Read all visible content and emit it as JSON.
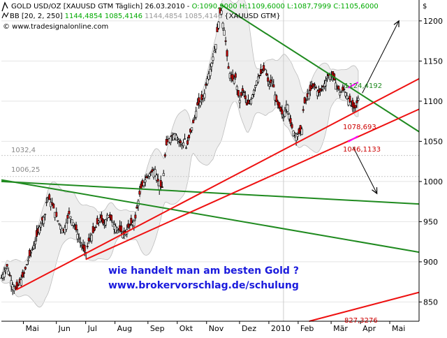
{
  "header": {
    "line1_prefix": "GOLD USD/OZ [XAUUSD GTM  Täglich] 26.03.2010 - ",
    "line1_ohlc": "O:1090,9000 H:1109,6000 L:1087,7999 C:1105,6000",
    "line2_prefix": "BB [20, 2, 250]",
    "line2_values": "1144,4854 1085,4146",
    "line2_grey": "1144,4854 1085,4146",
    "line2_symbol": "{XAUUSD GTM}",
    "line3": "© www.tradesignalonline.com",
    "currency": "$"
  },
  "colors": {
    "up_candle": "#ffffff",
    "down_candle": "#cc0000",
    "bb_band": "#e6e6e6",
    "green_line": "#1f8a1f",
    "red_line": "#ee1111",
    "pink": "#ff00ff",
    "ohlc_green": "#00aa00",
    "ohlc_red": "#cc0000",
    "text_blue": "#1b1bdd"
  },
  "annotations": {
    "label_1124": "1124,4192",
    "label_1078": "1078,693",
    "label_1046": "1046,1133",
    "label_1032": "1032,4",
    "label_1006": "1006,25",
    "label_827": "827,3276",
    "promo_line1": "wie handelt man am besten Gold ?",
    "promo_line2": "www.brokervorschlag.de/schulung"
  },
  "chart_data": {
    "type": "candlestick",
    "title": "GOLD USD/OZ [XAUUSD GTM Täglich] 26.03.2010",
    "ylim": [
      826,
      1226
    ],
    "yticks": [
      850,
      900,
      950,
      1000,
      1050,
      1100,
      1150,
      1200
    ],
    "xlabels": [
      "Mai",
      "Jun",
      "Jul",
      "Aug",
      "Sep",
      "Okt",
      "Nov",
      "Dez",
      "2010",
      "Feb",
      "Mär",
      "Apr",
      "Mai"
    ],
    "x_positions": [
      2009.29,
      2009.38,
      2009.46,
      2009.54,
      2009.63,
      2009.71,
      2009.79,
      2009.88,
      2009.96,
      2010.04,
      2010.13,
      2010.21,
      2010.29
    ],
    "xlim": [
      2009.23,
      2010.37
    ],
    "close_path": [
      [
        2009.23,
        880
      ],
      [
        2009.245,
        895
      ],
      [
        2009.26,
        872
      ],
      [
        2009.27,
        865
      ],
      [
        2009.29,
        883
      ],
      [
        2009.305,
        905
      ],
      [
        2009.32,
        922
      ],
      [
        2009.335,
        945
      ],
      [
        2009.35,
        960
      ],
      [
        2009.355,
        982
      ],
      [
        2009.37,
        970
      ],
      [
        2009.385,
        950
      ],
      [
        2009.4,
        938
      ],
      [
        2009.415,
        960
      ],
      [
        2009.43,
        945
      ],
      [
        2009.445,
        925
      ],
      [
        2009.46,
        910
      ],
      [
        2009.47,
        928
      ],
      [
        2009.485,
        940
      ],
      [
        2009.5,
        955
      ],
      [
        2009.51,
        945
      ],
      [
        2009.52,
        960
      ],
      [
        2009.535,
        948
      ],
      [
        2009.55,
        940
      ],
      [
        2009.565,
        935
      ],
      [
        2009.58,
        945
      ],
      [
        2009.595,
        952
      ],
      [
        2009.6,
        968
      ],
      [
        2009.61,
        990
      ],
      [
        2009.62,
        1000
      ],
      [
        2009.635,
        1010
      ],
      [
        2009.65,
        1015
      ],
      [
        2009.66,
        995
      ],
      [
        2009.67,
        992
      ],
      [
        2009.675,
        1025
      ],
      [
        2009.68,
        1045
      ],
      [
        2009.69,
        1055
      ],
      [
        2009.705,
        1060
      ],
      [
        2009.715,
        1050
      ],
      [
        2009.725,
        1045
      ],
      [
        2009.73,
        1055
      ],
      [
        2009.735,
        1040
      ],
      [
        2009.745,
        1060
      ],
      [
        2009.755,
        1075
      ],
      [
        2009.765,
        1095
      ],
      [
        2009.775,
        1100
      ],
      [
        2009.785,
        1110
      ],
      [
        2009.79,
        1125
      ],
      [
        2009.8,
        1140
      ],
      [
        2009.81,
        1160
      ],
      [
        2009.815,
        1170
      ],
      [
        2009.82,
        1190
      ],
      [
        2009.825,
        1205
      ],
      [
        2009.83,
        1215
      ],
      [
        2009.835,
        1195
      ],
      [
        2009.84,
        1185
      ],
      [
        2009.845,
        1160
      ],
      [
        2009.85,
        1140
      ],
      [
        2009.86,
        1125
      ],
      [
        2009.87,
        1130
      ],
      [
        2009.875,
        1110
      ],
      [
        2009.88,
        1100
      ],
      [
        2009.89,
        1115
      ],
      [
        2009.9,
        1095
      ],
      [
        2009.91,
        1100
      ],
      [
        2009.92,
        1115
      ],
      [
        2009.93,
        1130
      ],
      [
        2009.94,
        1135
      ],
      [
        2009.95,
        1140
      ],
      [
        2009.96,
        1120
      ],
      [
        2009.97,
        1125
      ],
      [
        2009.98,
        1100
      ],
      [
        2009.99,
        1090
      ],
      [
        2010.0,
        1080
      ],
      [
        2010.01,
        1100
      ],
      [
        2010.02,
        1070
      ],
      [
        2010.03,
        1060
      ],
      [
        2010.04,
        1058
      ],
      [
        2010.05,
        1065
      ],
      [
        2010.055,
        1095
      ],
      [
        2010.065,
        1105
      ],
      [
        2010.075,
        1115
      ],
      [
        2010.085,
        1120
      ],
      [
        2010.095,
        1110
      ],
      [
        2010.105,
        1115
      ],
      [
        2010.115,
        1125
      ],
      [
        2010.125,
        1133
      ],
      [
        2010.135,
        1130
      ],
      [
        2010.145,
        1120
      ],
      [
        2010.155,
        1110
      ],
      [
        2010.165,
        1115
      ],
      [
        2010.175,
        1105
      ],
      [
        2010.185,
        1095
      ],
      [
        2010.195,
        1090
      ],
      [
        2010.205,
        1105
      ]
    ],
    "bollinger": {
      "period": 20,
      "dev": 2,
      "upper": 1144.4854,
      "lower": 1085.4146
    },
    "ohlc_last": {
      "open": 1090.9,
      "high": 1109.6,
      "low": 1087.7999,
      "close": 1105.6
    },
    "horizontal_levels": [
      1032.4,
      1006.25
    ],
    "trendlines": [
      {
        "color": "green",
        "points": [
          [
            2009.83,
            1220
          ],
          [
            2010.37,
            1062
          ]
        ]
      },
      {
        "color": "green",
        "points": [
          [
            2009.23,
            1000
          ],
          [
            2010.37,
            972
          ]
        ]
      },
      {
        "color": "green",
        "points": [
          [
            2009.23,
            1002
          ],
          [
            2010.37,
            912
          ]
        ]
      },
      {
        "color": "red",
        "points": [
          [
            2009.27,
            865
          ],
          [
            2010.37,
            1128
          ]
        ]
      },
      {
        "color": "red",
        "points": [
          [
            2009.46,
            903
          ],
          [
            2010.37,
            1090
          ]
        ]
      },
      {
        "color": "red",
        "points": [
          [
            2010.07,
            826
          ],
          [
            2010.37,
            862
          ]
        ]
      }
    ],
    "arrows": [
      {
        "from": [
          2010.215,
          1110
        ],
        "to": [
          2010.315,
          1200
        ]
      },
      {
        "from": [
          2010.19,
          1043
        ],
        "to": [
          2010.255,
          985
        ]
      }
    ],
    "pink_marks": [
      [
        2010.19,
        1120
      ],
      [
        2010.19,
        1053
      ]
    ]
  }
}
